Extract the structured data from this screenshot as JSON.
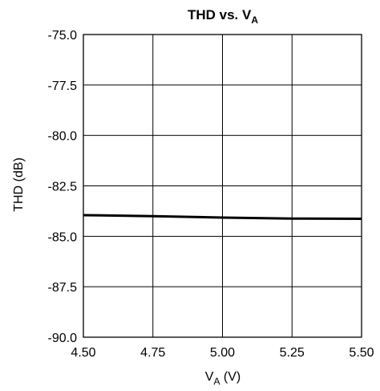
{
  "chart_data": {
    "type": "line",
    "title": "THD vs. V",
    "title_subscript": "A",
    "xlabel": "V",
    "xlabel_subscript": "A",
    "xlabel_unit": " (V)",
    "ylabel": "THD (dB)",
    "xlim": [
      4.5,
      5.5
    ],
    "ylim": [
      -90.0,
      -75.0
    ],
    "x_ticks": [
      4.5,
      4.75,
      5.0,
      5.25,
      5.5
    ],
    "x_tick_labels": [
      "4.50",
      "4.75",
      "5.00",
      "5.25",
      "5.50"
    ],
    "y_ticks": [
      -75.0,
      -77.5,
      -80.0,
      -82.5,
      -85.0,
      -87.5,
      -90.0
    ],
    "y_tick_labels": [
      "-75.0",
      "-77.5",
      "-80.0",
      "-82.5",
      "-85.0",
      "-87.5",
      "-90.0"
    ],
    "grid": true,
    "series": [
      {
        "x": [
          4.5,
          4.75,
          5.0,
          5.25,
          5.5
        ],
        "values": [
          -83.95,
          -84.0,
          -84.07,
          -84.12,
          -84.13
        ],
        "color": "#000000"
      }
    ]
  }
}
